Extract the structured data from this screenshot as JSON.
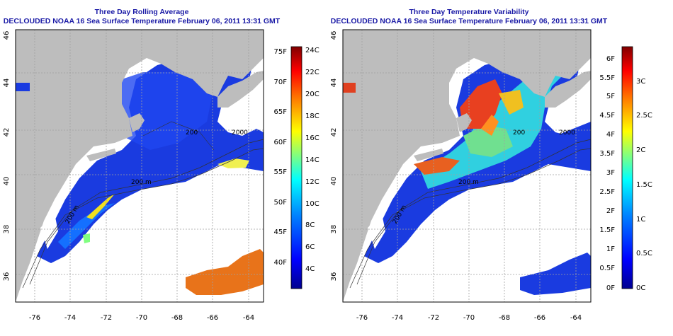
{
  "colors": {
    "land": "#bdbdbd",
    "frame": "#000000",
    "title": "#1a1aa6",
    "grid": "#a0a0a0",
    "sst_warm": "#e8731a",
    "sst_cold": "#1a3be0"
  },
  "panels": [
    {
      "title_line1": "Three Day Rolling Average",
      "title_line2": "DECLOUDED NOAA 16 Sea Surface Temperature February 06, 2011 13:31 GMT",
      "lat_ticks": [
        "36",
        "38",
        "40",
        "42",
        "44",
        "46"
      ],
      "lon_ticks": [
        "-76",
        "-74",
        "-72",
        "-70",
        "-68",
        "-66",
        "-64"
      ],
      "contour_labels": [
        "200 m",
        "200",
        "2000",
        "200 m"
      ],
      "colorbar": {
        "f_ticks": [
          "75F",
          "70F",
          "65F",
          "60F",
          "55F",
          "50F",
          "45F",
          "40F"
        ],
        "c_ticks": [
          "24C",
          "22C",
          "20C",
          "18C",
          "16C",
          "14C",
          "12C",
          "10C",
          "8C",
          "6C",
          "4C"
        ],
        "gradient": [
          "#00008f",
          "#0000ff",
          "#0080ff",
          "#00ffff",
          "#80ff80",
          "#ffff00",
          "#ff8000",
          "#ff0000",
          "#800000"
        ]
      }
    },
    {
      "title_line1": "Three Day Temperature Variability",
      "title_line2": "DECLOUDED NOAA 16 Sea Surface Temperature February 06, 2011 13:31 GMT",
      "lat_ticks": [
        "36",
        "38",
        "40",
        "42",
        "44",
        "46"
      ],
      "lon_ticks": [
        "-76",
        "-74",
        "-72",
        "-70",
        "-68",
        "-66",
        "-64"
      ],
      "contour_labels": [
        "200 m",
        "200",
        "2000",
        "200 m"
      ],
      "colorbar": {
        "f_ticks": [
          "6F",
          "5.5F",
          "5F",
          "4.5F",
          "4F",
          "3.5F",
          "3F",
          "2.5F",
          "2F",
          "1.5F",
          "1F",
          "0.5F",
          "0F"
        ],
        "c_ticks": [
          "3C",
          "2.5C",
          "2C",
          "1.5C",
          "1C",
          "0.5C",
          "0C"
        ],
        "gradient": [
          "#00008f",
          "#0000ff",
          "#0080ff",
          "#00ffff",
          "#80ff80",
          "#ffff00",
          "#ff8000",
          "#ff0000",
          "#800000"
        ]
      }
    }
  ]
}
